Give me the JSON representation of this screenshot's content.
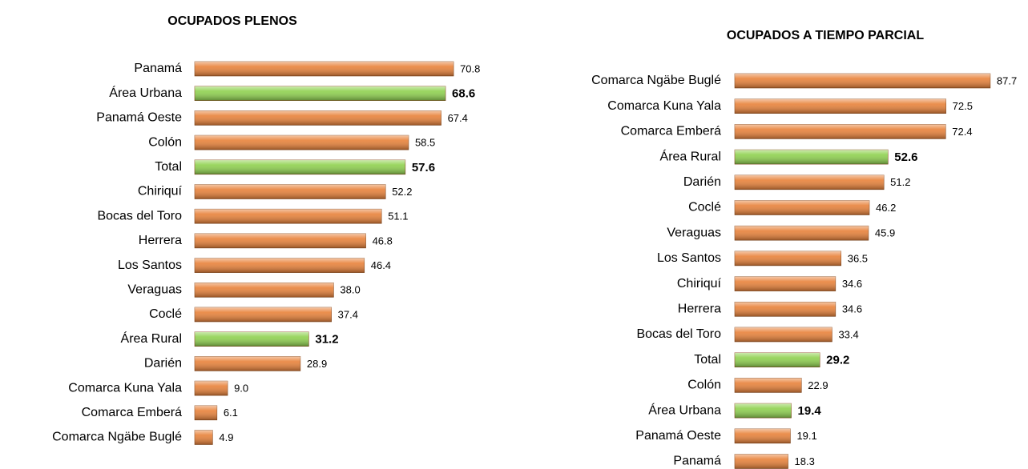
{
  "chart_data": [
    {
      "type": "bar",
      "orientation": "horizontal",
      "title": "OCUPADOS PLENOS",
      "categories": [
        "Panamá",
        "Área Urbana",
        "Panamá Oeste",
        "Colón",
        "Total",
        "Chiriquí",
        "Bocas del Toro",
        "Herrera",
        "Los Santos",
        "Veraguas",
        "Coclé",
        "Área Rural",
        "Darién",
        "Comarca Kuna Yala",
        "Comarca Emberá",
        "Comarca Ngäbe Buglé"
      ],
      "values": [
        70.8,
        68.6,
        67.4,
        58.5,
        57.6,
        52.2,
        51.1,
        46.8,
        46.4,
        38.0,
        37.4,
        31.2,
        28.9,
        9.0,
        6.1,
        4.9
      ],
      "value_labels": [
        "70.8",
        "68.6",
        "67.4",
        "58.5",
        "57.6",
        "52.2",
        "51.1",
        "46.8",
        "46.4",
        "38.0",
        "37.4",
        "31.2",
        "28.9",
        "9.0",
        "6.1",
        "4.9"
      ],
      "colors": [
        "#e8823a",
        "#8fd14f",
        "#e8823a",
        "#e8823a",
        "#8fd14f",
        "#e8823a",
        "#e8823a",
        "#e8823a",
        "#e8823a",
        "#e8823a",
        "#e8823a",
        "#8fd14f",
        "#e8823a",
        "#e8823a",
        "#e8823a",
        "#e8823a"
      ],
      "highlight_color": "#8fd14f",
      "xlim": [
        0,
        71
      ]
    },
    {
      "type": "bar",
      "orientation": "horizontal",
      "title": "OCUPADOS A TIEMPO PARCIAL",
      "categories": [
        "Comarca Ngäbe Buglé",
        "Comarca Kuna Yala",
        "Comarca Emberá",
        "Área Rural",
        "Darién",
        "Coclé",
        "Veraguas",
        "Los Santos",
        "Chiriquí",
        "Herrera",
        "Bocas del Toro",
        "Total",
        "Colón",
        "Área Urbana",
        "Panamá Oeste",
        "Panamá"
      ],
      "values": [
        87.7,
        72.5,
        72.4,
        52.6,
        51.2,
        46.2,
        45.9,
        36.5,
        34.6,
        34.6,
        33.4,
        29.2,
        22.9,
        19.4,
        19.1,
        18.3
      ],
      "value_labels": [
        "87.7",
        "72.5",
        "72.4",
        "52.6",
        "51.2",
        "46.2",
        "45.9",
        "36.5",
        "34.6",
        "34.6",
        "33.4",
        "29.2",
        "22.9",
        "19.4",
        "19.1",
        "18.3"
      ],
      "colors": [
        "#e8823a",
        "#e8823a",
        "#e8823a",
        "#8fd14f",
        "#e8823a",
        "#e8823a",
        "#e8823a",
        "#e8823a",
        "#e8823a",
        "#e8823a",
        "#e8823a",
        "#8fd14f",
        "#e8823a",
        "#8fd14f",
        "#e8823a",
        "#e8823a"
      ],
      "highlight_color": "#8fd14f",
      "xlim": [
        0,
        88
      ]
    }
  ]
}
